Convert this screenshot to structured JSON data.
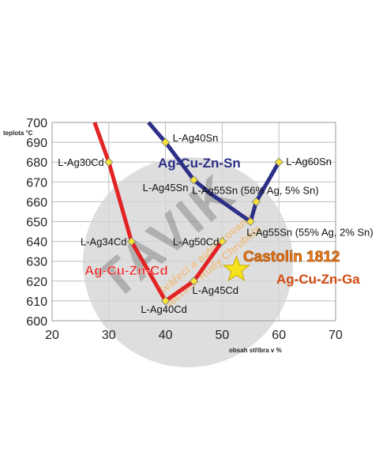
{
  "chart_data": {
    "type": "line",
    "ylabel": "teplota °C",
    "xlabel": "obsah stříbra v %",
    "xlim": [
      20,
      70
    ],
    "ylim": [
      600,
      700
    ],
    "xticks": [
      20,
      30,
      40,
      50,
      60,
      70
    ],
    "yticks": [
      600,
      610,
      620,
      630,
      640,
      650,
      660,
      670,
      680,
      690,
      700
    ],
    "grid": true,
    "series": [
      {
        "name": "Ag-Cu-Zn-Cd",
        "color": "#e32224",
        "line": [
          [
            27.5,
            700
          ],
          [
            30,
            680
          ],
          [
            34,
            640
          ],
          [
            40,
            610
          ],
          [
            45,
            620
          ],
          [
            50,
            640
          ]
        ],
        "points": [
          {
            "x": 30,
            "y": 680,
            "label": "L-Ag30Cd"
          },
          {
            "x": 34,
            "y": 640,
            "label": "L-Ag34Cd"
          },
          {
            "x": 40,
            "y": 610,
            "label": "L-Ag40Cd"
          },
          {
            "x": 45,
            "y": 620,
            "label": "L-Ag45Cd"
          },
          {
            "x": 50,
            "y": 640,
            "label": "L-Ag50Cd"
          }
        ]
      },
      {
        "name": "Ag-Cu-Zn-Sn",
        "color": "#2b2f86",
        "line": [
          [
            37,
            700
          ],
          [
            40,
            690
          ],
          [
            45,
            671
          ],
          [
            48,
            664
          ],
          [
            55,
            650
          ],
          [
            56,
            660
          ],
          [
            60,
            680
          ]
        ],
        "points": [
          {
            "x": 40,
            "y": 690,
            "label": "L-Ag40Sn"
          },
          {
            "x": 45,
            "y": 671,
            "label": "L-Ag45Sn"
          },
          {
            "x": 56,
            "y": 660,
            "label": "L-Ag55Sn (56% Ag, 5% Sn)"
          },
          {
            "x": 55,
            "y": 650,
            "label": "L-Ag55Sn (55% Ag, 2% Sn)"
          },
          {
            "x": 60,
            "y": 680,
            "label": "L-Ag60Sn"
          }
        ]
      }
    ],
    "highlight": {
      "title": "Castolin 1812",
      "name": "Ag-Cu-Zn-Ga",
      "x": 56,
      "y": 621,
      "color": "#f6e41c"
    }
  },
  "watermark": {
    "main": "TAVIK",
    "line1": "Svářecí a autorizovaný",
    "line2": "technik Rudy Chrubela"
  }
}
